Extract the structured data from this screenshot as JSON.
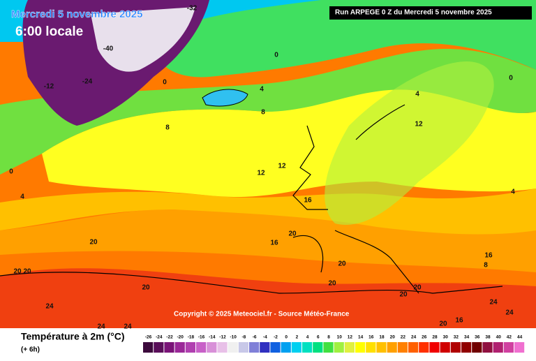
{
  "header": {
    "date": "Mercredi 5 novembre 2025",
    "time": "6:00 locale",
    "run": "Run ARPEGE 0 Z du Mercredi 5 novembre 2025"
  },
  "copyright": "Copyright © 2025 Meteociel.fr - Source Météo-France",
  "legend": {
    "title": "Température à 2m (°C)",
    "lead": "(+ 6h)",
    "ticks": [
      -26,
      -24,
      -22,
      -20,
      -18,
      -16,
      -14,
      -12,
      -10,
      -8,
      -6,
      -4,
      -2,
      0,
      2,
      4,
      6,
      8,
      10,
      12,
      14,
      16,
      18,
      20,
      22,
      24,
      26,
      28,
      30,
      32,
      34,
      36,
      38,
      40,
      42,
      44
    ],
    "colors": [
      "#3c0a3c",
      "#5a0f5a",
      "#7a1478",
      "#9a2898",
      "#b040b0",
      "#c860c8",
      "#d890d8",
      "#e8c0e8",
      "#f0f0f0",
      "#c8c8e8",
      "#8080d8",
      "#3030c0",
      "#1060e0",
      "#00a0f0",
      "#00d0f0",
      "#00e0c0",
      "#00e080",
      "#40e040",
      "#a0f040",
      "#e0f040",
      "#ffff00",
      "#ffe000",
      "#ffc000",
      "#ffa000",
      "#ff8000",
      "#ff6000",
      "#ff3000",
      "#f00000",
      "#d00000",
      "#b00000",
      "#900000",
      "#700000",
      "#901040",
      "#b02070",
      "#d040a0",
      "#f070d0"
    ]
  },
  "map_labels": [
    20,
    20,
    20,
    20,
    24,
    24,
    24,
    8,
    8,
    4,
    0,
    0,
    12,
    12,
    16,
    16,
    20,
    20,
    20,
    20,
    20,
    24,
    24,
    16,
    20,
    12,
    4,
    0,
    4,
    8,
    16,
    -12,
    -24,
    -32,
    -40,
    4,
    0
  ]
}
